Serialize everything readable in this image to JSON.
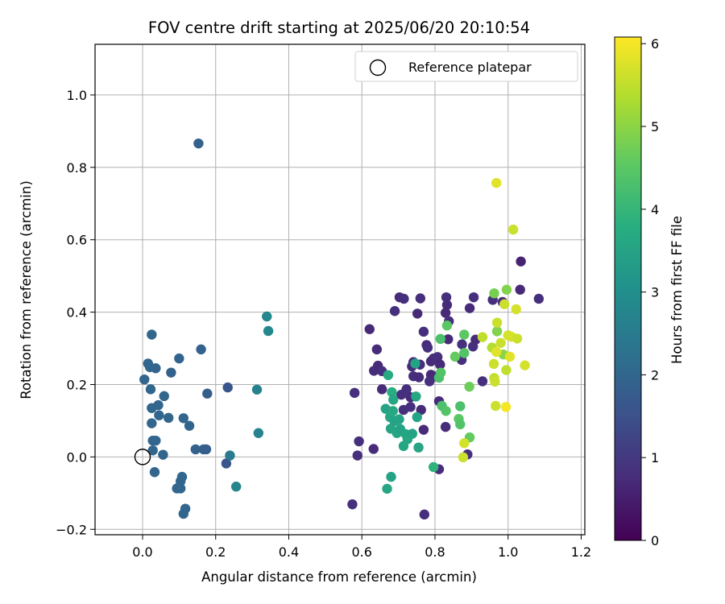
{
  "chart_data": {
    "type": "scatter",
    "title": "FOV centre drift starting at 2025/06/20 20:10:54",
    "xlabel": "Angular distance from reference (arcmin)",
    "ylabel": "Rotation from reference (arcmin)",
    "xlim": [
      -0.13,
      1.21
    ],
    "ylim": [
      -0.215,
      1.14
    ],
    "xticks": [
      0.0,
      0.2,
      0.4,
      0.6,
      0.8,
      1.0,
      1.2
    ],
    "xtick_labels": [
      "0.0",
      "0.2",
      "0.4",
      "0.6",
      "0.8",
      "1.0",
      "1.2"
    ],
    "yticks": [
      -0.2,
      0.0,
      0.2,
      0.4,
      0.6,
      0.8,
      1.0
    ],
    "ytick_labels": [
      "−0.2",
      "0.0",
      "0.2",
      "0.4",
      "0.6",
      "0.8",
      "1.0"
    ],
    "grid": true,
    "legend": {
      "position": "top-right",
      "entries": [
        "Reference platepar"
      ]
    },
    "reference_point": {
      "x": 0.0,
      "y": 0.0,
      "label": "Reference platepar"
    },
    "colorbar": {
      "label": "Hours from first FF file",
      "colormap": "viridis",
      "range": [
        0,
        6.08
      ],
      "ticks": [
        0,
        1,
        2,
        3,
        4,
        5,
        6
      ],
      "tick_labels": [
        "0",
        "1",
        "2",
        "3",
        "4",
        "5",
        "6"
      ]
    },
    "series": [
      {
        "colormap_value_unit": "hours",
        "points": [
          [
            0.153,
            0.866,
            1.9
          ],
          [
            0.025,
            0.338,
            2.0
          ],
          [
            0.16,
            0.297,
            1.9
          ],
          [
            0.1,
            0.272,
            1.95
          ],
          [
            0.015,
            0.258,
            2.0
          ],
          [
            0.02,
            0.248,
            2.0
          ],
          [
            0.036,
            0.245,
            1.95
          ],
          [
            0.078,
            0.233,
            1.9
          ],
          [
            0.005,
            0.214,
            2.0
          ],
          [
            0.022,
            0.187,
            2.0
          ],
          [
            0.059,
            0.168,
            2.0
          ],
          [
            0.177,
            0.175,
            1.8
          ],
          [
            0.233,
            0.192,
            1.6
          ],
          [
            0.043,
            0.143,
            2.0
          ],
          [
            0.025,
            0.135,
            2.0
          ],
          [
            0.045,
            0.115,
            2.0
          ],
          [
            0.071,
            0.108,
            2.0
          ],
          [
            0.112,
            0.107,
            2.0
          ],
          [
            0.025,
            0.093,
            2.0
          ],
          [
            0.128,
            0.086,
            1.95
          ],
          [
            0.028,
            0.045,
            2.0
          ],
          [
            0.036,
            0.045,
            2.0
          ],
          [
            0.028,
            0.018,
            2.0
          ],
          [
            0.145,
            0.021,
            1.9
          ],
          [
            0.167,
            0.021,
            1.85
          ],
          [
            0.174,
            0.021,
            1.8
          ],
          [
            0.056,
            0.006,
            2.0
          ],
          [
            0.033,
            -0.042,
            2.0
          ],
          [
            0.229,
            -0.018,
            1.6
          ],
          [
            0.239,
            0.004,
            2.5
          ],
          [
            0.108,
            -0.055,
            2.0
          ],
          [
            0.104,
            -0.067,
            2.0
          ],
          [
            0.094,
            -0.087,
            2.0
          ],
          [
            0.104,
            -0.087,
            2.0
          ],
          [
            0.117,
            -0.143,
            2.0
          ],
          [
            0.112,
            -0.157,
            2.0
          ],
          [
            0.256,
            -0.082,
            2.75
          ],
          [
            0.34,
            0.388,
            2.8
          ],
          [
            0.344,
            0.348,
            2.8
          ],
          [
            0.313,
            0.186,
            2.7
          ],
          [
            0.317,
            0.066,
            2.7
          ],
          [
            0.621,
            0.353,
            0.7
          ],
          [
            0.633,
            0.238,
            0.75
          ],
          [
            0.641,
            0.297,
            0.75
          ],
          [
            0.644,
            0.252,
            0.7
          ],
          [
            0.655,
            0.237,
            0.8
          ],
          [
            0.655,
            0.187,
            0.7
          ],
          [
            0.58,
            0.177,
            0.8
          ],
          [
            0.592,
            0.043,
            0.8
          ],
          [
            0.588,
            0.004,
            0.8
          ],
          [
            0.632,
            0.022,
            0.75
          ],
          [
            0.574,
            -0.131,
            0.8
          ],
          [
            0.69,
            0.403,
            0.8
          ],
          [
            0.703,
            0.441,
            0.75
          ],
          [
            0.715,
            0.437,
            0.8
          ],
          [
            0.76,
            0.438,
            0.8
          ],
          [
            0.752,
            0.396,
            0.7
          ],
          [
            0.769,
            0.346,
            0.8
          ],
          [
            0.777,
            0.309,
            0.7
          ],
          [
            0.78,
            0.302,
            0.8
          ],
          [
            0.741,
            0.262,
            0.7
          ],
          [
            0.737,
            0.25,
            0.7
          ],
          [
            0.741,
            0.223,
            0.8
          ],
          [
            0.756,
            0.22,
            0.75
          ],
          [
            0.759,
            0.255,
            0.8
          ],
          [
            0.789,
            0.264,
            0.7
          ],
          [
            0.796,
            0.272,
            0.75
          ],
          [
            0.807,
            0.276,
            0.8
          ],
          [
            0.814,
            0.255,
            0.7
          ],
          [
            0.789,
            0.227,
            0.7
          ],
          [
            0.803,
            0.222,
            0.75
          ],
          [
            0.785,
            0.209,
            0.8
          ],
          [
            0.722,
            0.187,
            0.8
          ],
          [
            0.708,
            0.172,
            0.8
          ],
          [
            0.733,
            0.165,
            0.75
          ],
          [
            0.733,
            0.138,
            0.8
          ],
          [
            0.714,
            0.13,
            0.8
          ],
          [
            0.762,
            0.13,
            0.7
          ],
          [
            0.769,
            0.075,
            0.75
          ],
          [
            0.811,
            0.154,
            0.75
          ],
          [
            0.829,
            0.083,
            0.75
          ],
          [
            0.811,
            -0.034,
            0.75
          ],
          [
            0.771,
            -0.159,
            0.8
          ],
          [
            0.831,
            0.441,
            0.8
          ],
          [
            0.833,
            0.42,
            0.75
          ],
          [
            0.829,
            0.398,
            0.7
          ],
          [
            0.838,
            0.375,
            0.8
          ],
          [
            0.836,
            0.325,
            0.7
          ],
          [
            0.874,
            0.311,
            0.8
          ],
          [
            0.873,
            0.268,
            0.8
          ],
          [
            0.895,
            0.411,
            0.7
          ],
          [
            0.906,
            0.441,
            0.8
          ],
          [
            0.904,
            0.305,
            0.8
          ],
          [
            0.911,
            0.324,
            0.75
          ],
          [
            0.93,
            0.209,
            0.8
          ],
          [
            0.958,
            0.434,
            0.8
          ],
          [
            0.985,
            0.428,
            0.7
          ],
          [
            1.035,
            0.54,
            0.6
          ],
          [
            1.033,
            0.462,
            0.7
          ],
          [
            1.084,
            0.437,
            0.8
          ],
          [
            0.889,
            0.007,
            0.8
          ],
          [
            0.672,
            0.226,
            3.7
          ],
          [
            0.665,
            0.133,
            3.5
          ],
          [
            0.682,
            0.179,
            3.8
          ],
          [
            0.686,
            0.158,
            3.6
          ],
          [
            0.677,
            0.11,
            3.6
          ],
          [
            0.685,
            0.127,
            3.65
          ],
          [
            0.689,
            0.099,
            3.5
          ],
          [
            0.702,
            0.104,
            3.5
          ],
          [
            0.679,
            0.078,
            3.55
          ],
          [
            0.696,
            0.066,
            3.6
          ],
          [
            0.705,
            0.077,
            3.5
          ],
          [
            0.72,
            0.063,
            3.55
          ],
          [
            0.725,
            0.049,
            3.6
          ],
          [
            0.738,
            0.064,
            3.5
          ],
          [
            0.714,
            0.03,
            3.6
          ],
          [
            0.751,
            0.11,
            3.5
          ],
          [
            0.748,
            0.167,
            3.6
          ],
          [
            0.755,
            0.026,
            3.55
          ],
          [
            0.68,
            -0.055,
            3.5
          ],
          [
            0.669,
            -0.088,
            3.6
          ],
          [
            0.746,
            0.258,
            3.5
          ],
          [
            0.815,
            0.326,
            4.3
          ],
          [
            0.811,
            0.219,
            4.3
          ],
          [
            0.816,
            0.233,
            4.4
          ],
          [
            0.796,
            -0.028,
            3.9
          ],
          [
            0.819,
            0.141,
            4.3
          ],
          [
            0.83,
            0.127,
            4.4
          ],
          [
            0.833,
            0.363,
            4.5
          ],
          [
            0.855,
            0.277,
            4.6
          ],
          [
            0.869,
            0.14,
            4.3
          ],
          [
            0.865,
            0.105,
            4.5
          ],
          [
            0.869,
            0.09,
            4.4
          ],
          [
            0.88,
            0.287,
            4.4
          ],
          [
            0.88,
            0.338,
            4.5
          ],
          [
            0.894,
            0.194,
            4.7
          ],
          [
            0.895,
            0.054,
            4.6
          ],
          [
            0.962,
            0.452,
            4.8
          ],
          [
            0.97,
            0.347,
            4.9
          ],
          [
            0.987,
            0.283,
            5.0
          ],
          [
            0.996,
            0.462,
            4.9
          ],
          [
            0.88,
            0.038,
            5.7
          ],
          [
            0.877,
            -0.001,
            5.6
          ],
          [
            0.93,
            0.331,
            5.5
          ],
          [
            0.956,
            0.302,
            5.4
          ],
          [
            0.961,
            0.257,
            5.6
          ],
          [
            0.962,
            0.218,
            5.5
          ],
          [
            0.964,
            0.208,
            5.6
          ],
          [
            0.966,
            0.141,
            5.6
          ],
          [
            0.968,
            0.29,
            5.8
          ],
          [
            0.97,
            0.371,
            5.6
          ],
          [
            0.98,
            0.315,
            5.6
          ],
          [
            0.99,
            0.422,
            5.6
          ],
          [
            0.995,
            0.24,
            5.5
          ],
          [
            1.0,
            0.336,
            5.7
          ],
          [
            1.005,
            0.277,
            5.8
          ],
          [
            1.009,
            0.332,
            5.7
          ],
          [
            1.022,
            0.408,
            5.7
          ],
          [
            1.025,
            0.327,
            5.6
          ],
          [
            1.046,
            0.253,
            5.7
          ],
          [
            1.014,
            0.628,
            5.6
          ],
          [
            0.968,
            0.757,
            5.8
          ],
          [
            0.994,
            0.138,
            6.0
          ]
        ]
      }
    ]
  }
}
